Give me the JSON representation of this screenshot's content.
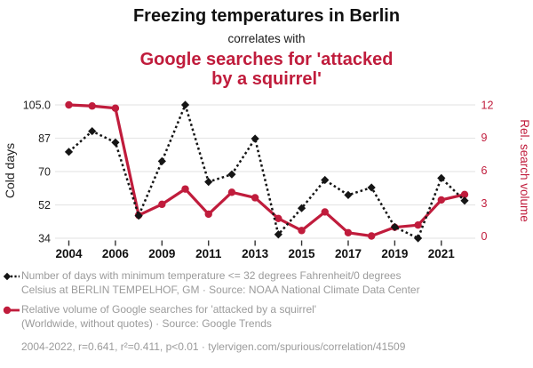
{
  "header": {
    "title": "Freezing temperatures in Berlin",
    "subtitle": "correlates with",
    "red_title_lines": [
      "Google searches for 'attacked",
      "by a squirrel'"
    ]
  },
  "colors": {
    "accent_red": "#c01c3c",
    "series_black": "#151515",
    "grid": "#e7e7e7",
    "muted_text": "#9b9b9b"
  },
  "chart_data": {
    "type": "line",
    "x": [
      2004,
      2005,
      2006,
      2008,
      2009,
      2010,
      2011,
      2012,
      2013,
      2014,
      2015,
      2016,
      2017,
      2018,
      2019,
      2020,
      2021,
      2022
    ],
    "x_tick_indices": [
      0,
      2,
      4,
      6,
      8,
      10,
      12,
      14,
      16
    ],
    "x_tick_labels": [
      "2004",
      "2006",
      "2009",
      "2011",
      "2013",
      "2015",
      "2017",
      "2019",
      "2021"
    ],
    "series": [
      {
        "name": "Cold days (min temp <= 32F/0C at BERLIN TEMPELHOF, GM)",
        "axis": "left",
        "style": "dotted-diamond",
        "color": "#151515",
        "values": [
          80,
          91,
          85,
          46,
          75,
          105,
          64,
          68,
          87,
          36,
          50,
          65,
          57,
          61,
          40,
          34,
          66,
          54
        ]
      },
      {
        "name": "Rel. volume of Google searches for 'attacked by a squirrel'",
        "axis": "right",
        "style": "solid-circle",
        "color": "#c01c3c",
        "values": [
          12,
          11.9,
          11.7,
          1.9,
          2.9,
          4.3,
          2.0,
          4.0,
          3.5,
          1.6,
          0.5,
          2.2,
          0.3,
          0.0,
          0.8,
          1.0,
          3.3,
          3.8
        ]
      }
    ],
    "left_axis": {
      "label": "Cold days",
      "range": [
        34,
        105
      ],
      "tick_labels_top_down": [
        "105.0",
        "87",
        "70",
        "52",
        "34"
      ]
    },
    "right_axis": {
      "label": "Rel. search volume",
      "range": [
        0,
        12
      ],
      "tick_labels_top_down": [
        "12",
        "9",
        "6",
        "3",
        "0"
      ]
    },
    "grid": true,
    "legend_position": "below"
  },
  "legend": {
    "entries": [
      {
        "marker": "black-diamond-dotted",
        "lines": [
          "Number of days with minimum temperature <= 32 degrees Fahrenheit/0 degrees",
          "Celsius at BERLIN TEMPELHOF, GM · Source: NOAA National Climate Data Center"
        ]
      },
      {
        "marker": "red-circle-solid",
        "lines": [
          "Relative volume of Google searches for 'attacked by a squirrel'",
          "(Worldwide, without quotes) · Source: Google Trends"
        ]
      }
    ]
  },
  "footer": {
    "stats": "2004-2022, r=0.641, r²=0.411, p<0.01 · tylervigen.com/spurious/correlation/41509"
  }
}
